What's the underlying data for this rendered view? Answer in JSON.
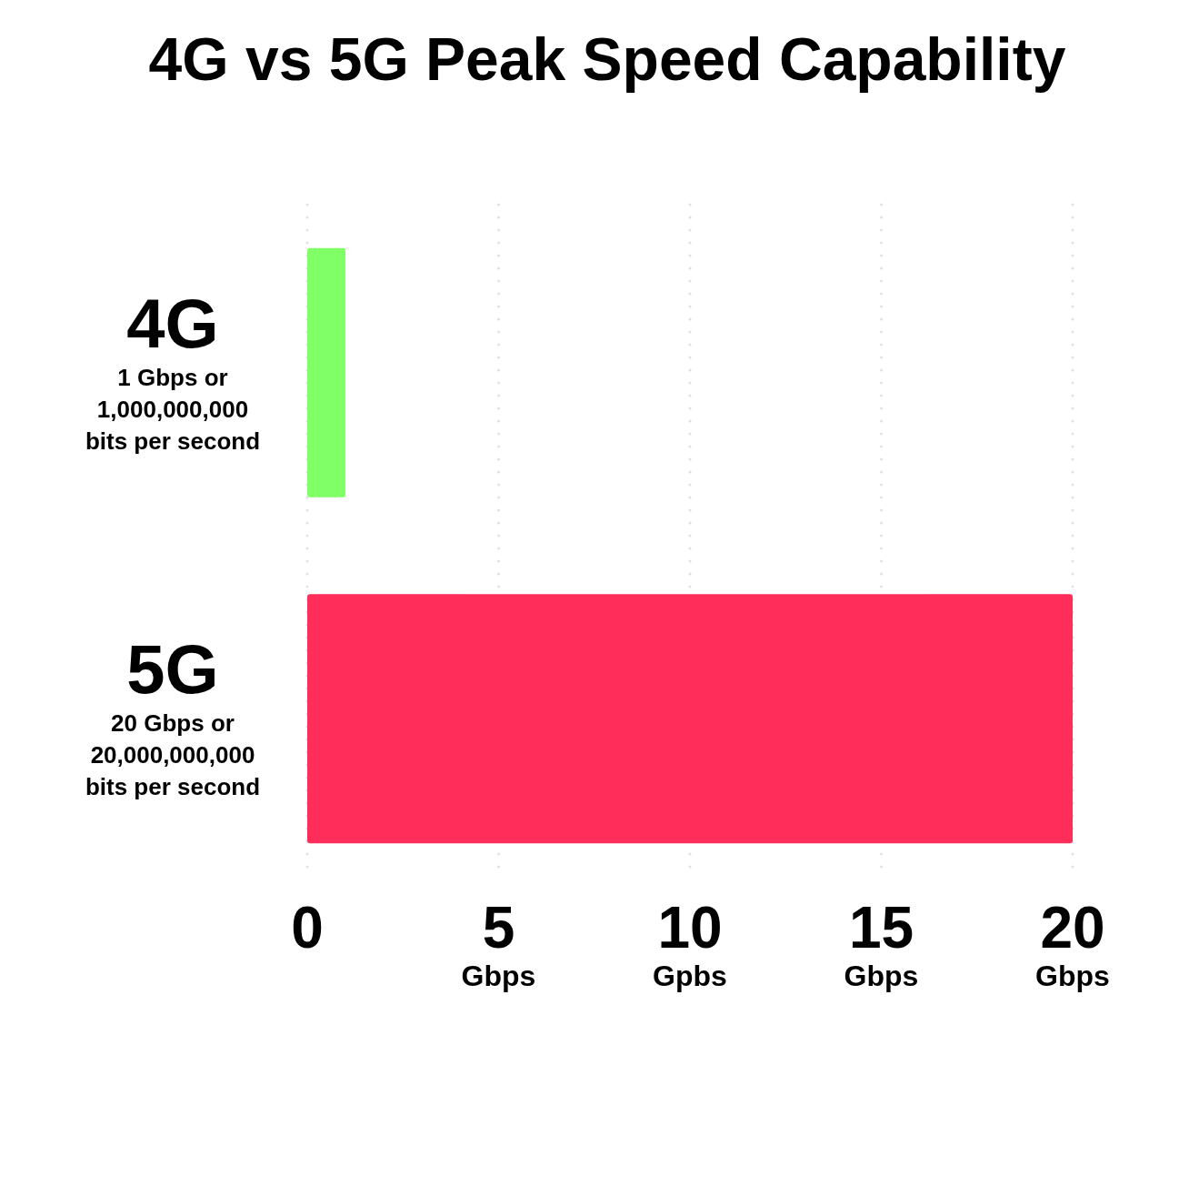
{
  "chart_data": {
    "type": "bar",
    "orientation": "horizontal",
    "title": "4G vs 5G Peak Speed Capability",
    "categories": [
      "4G",
      "5G"
    ],
    "values": [
      1,
      20
    ],
    "colors": [
      "#80ff66",
      "#ff2d5a"
    ],
    "value_labels": [
      "1 Gbps or 1,000,000,000 bits per second",
      "20 Gbps or 20,000,000,000 bits per second"
    ],
    "xlim": [
      0,
      20
    ],
    "xticks": [
      0,
      {
        "value": 5,
        "label": "5 Gbps"
      },
      {
        "value": 10,
        "label": "10 Gpbs"
      },
      {
        "value": 15,
        "label": "15 Gbps"
      },
      {
        "value": 20,
        "label": "20 Gbps"
      }
    ],
    "grid": "x"
  }
}
